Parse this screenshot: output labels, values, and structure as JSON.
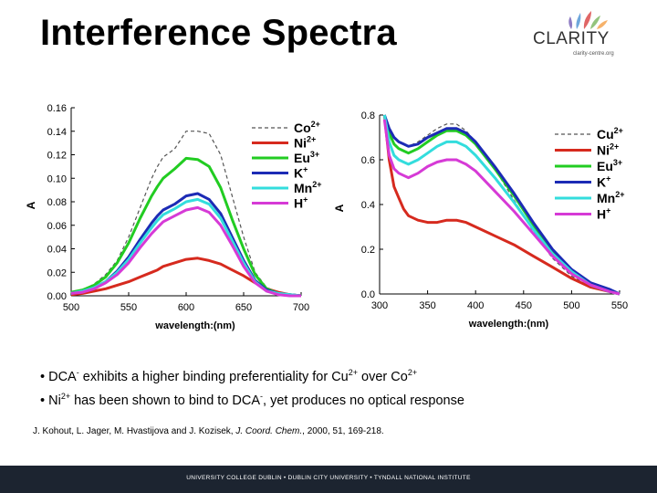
{
  "slide": {
    "title": "Interference Spectra",
    "logo": {
      "word": "CLARITY",
      "subtitle": "clarity-centre.org"
    },
    "bullets": [
      {
        "parts": [
          "• DCA",
          "-",
          " exhibits a higher binding preferentiality for Cu",
          "2+",
          " over Co",
          "2+"
        ]
      },
      {
        "parts": [
          "• Ni",
          "2+",
          " has been shown to bind to DCA",
          "-",
          ", yet produces no optical response"
        ]
      }
    ],
    "reference": {
      "authors": "J. Kohout, L. Jager, M. Hvastijova and J. Kozisek, ",
      "journal": "J. Coord. Chem.",
      "rest": ", 2000, 51, 169-218."
    },
    "footer": "UNIVERSITY COLLEGE DUBLIN  •  DUBLIN CITY UNIVERSITY  •  TYNDALL NATIONAL INSTITUTE"
  },
  "chart_data": [
    {
      "type": "line",
      "xlabel": "wavelength:(nm)",
      "ylabel": "A",
      "xlim": [
        500,
        700
      ],
      "ylim": [
        0,
        0.16
      ],
      "xticks": [
        500,
        550,
        600,
        650,
        700
      ],
      "yticks": [
        0.0,
        0.02,
        0.04,
        0.06,
        0.08,
        0.1,
        0.12,
        0.14,
        0.16
      ],
      "ytick_labels": [
        "0.00",
        "0.02",
        "0.04",
        "0.06",
        "0.08",
        "0.10",
        "0.12",
        "0.14",
        "0.16"
      ],
      "legend": "top-right",
      "x": [
        500,
        510,
        520,
        530,
        540,
        550,
        560,
        570,
        575,
        580,
        590,
        600,
        610,
        620,
        630,
        640,
        650,
        660,
        670,
        680,
        690,
        700
      ],
      "series": [
        {
          "name": "Co",
          "sup": "2+",
          "color": "#555555",
          "dashed": true,
          "values": [
            0.003,
            0.005,
            0.01,
            0.018,
            0.03,
            0.05,
            0.075,
            0.1,
            0.11,
            0.118,
            0.125,
            0.14,
            0.14,
            0.138,
            0.12,
            0.085,
            0.05,
            0.02,
            0.007,
            0.003,
            0.001,
            0.0
          ]
        },
        {
          "name": "Ni",
          "sup": "2+",
          "color": "#d62a1e",
          "dashed": false,
          "values": [
            0.001,
            0.002,
            0.004,
            0.006,
            0.009,
            0.012,
            0.016,
            0.02,
            0.022,
            0.025,
            0.028,
            0.031,
            0.032,
            0.03,
            0.027,
            0.022,
            0.017,
            0.011,
            0.006,
            0.003,
            0.001,
            0.0
          ]
        },
        {
          "name": "Eu",
          "sup": "3+",
          "color": "#22cc22",
          "dashed": false,
          "values": [
            0.003,
            0.005,
            0.009,
            0.016,
            0.028,
            0.045,
            0.066,
            0.085,
            0.093,
            0.1,
            0.108,
            0.117,
            0.116,
            0.11,
            0.092,
            0.065,
            0.04,
            0.018,
            0.006,
            0.002,
            0.001,
            0.0
          ]
        },
        {
          "name": "K",
          "sup": "+",
          "color": "#1c2bb5",
          "dashed": false,
          "values": [
            0.002,
            0.004,
            0.007,
            0.012,
            0.021,
            0.033,
            0.048,
            0.062,
            0.068,
            0.073,
            0.078,
            0.085,
            0.087,
            0.082,
            0.07,
            0.05,
            0.03,
            0.013,
            0.005,
            0.002,
            0.001,
            0.0
          ]
        },
        {
          "name": "Mn",
          "sup": "2+",
          "color": "#33dddd",
          "dashed": false,
          "values": [
            0.002,
            0.004,
            0.007,
            0.012,
            0.02,
            0.031,
            0.045,
            0.058,
            0.064,
            0.069,
            0.074,
            0.08,
            0.082,
            0.078,
            0.066,
            0.047,
            0.028,
            0.012,
            0.004,
            0.002,
            0.001,
            0.0
          ]
        },
        {
          "name": "H",
          "sup": "+",
          "color": "#d63ad6",
          "dashed": false,
          "values": [
            0.002,
            0.003,
            0.006,
            0.011,
            0.018,
            0.028,
            0.041,
            0.053,
            0.058,
            0.063,
            0.068,
            0.073,
            0.075,
            0.071,
            0.06,
            0.043,
            0.025,
            0.011,
            0.004,
            0.001,
            0.0,
            0.0
          ]
        }
      ]
    },
    {
      "type": "line",
      "xlabel": "wavelength:(nm)",
      "ylabel": "A",
      "xlim": [
        300,
        550
      ],
      "ylim": [
        0,
        0.8
      ],
      "xticks": [
        300,
        350,
        400,
        450,
        500,
        550
      ],
      "yticks": [
        0.0,
        0.2,
        0.4,
        0.6,
        0.8
      ],
      "ytick_labels": [
        "0.0",
        "0.2",
        "0.4",
        "0.6",
        "0.8"
      ],
      "legend": "right",
      "x": [
        305,
        310,
        315,
        320,
        325,
        330,
        340,
        350,
        360,
        370,
        380,
        390,
        400,
        420,
        440,
        460,
        480,
        500,
        520,
        540,
        550
      ],
      "series": [
        {
          "name": "Cu",
          "sup": "2+",
          "color": "#555555",
          "dashed": true,
          "values": [
            0.8,
            0.74,
            0.7,
            0.68,
            0.67,
            0.66,
            0.68,
            0.71,
            0.74,
            0.76,
            0.76,
            0.73,
            0.68,
            0.56,
            0.42,
            0.28,
            0.16,
            0.08,
            0.03,
            0.01,
            0.0
          ]
        },
        {
          "name": "Ni",
          "sup": "2+",
          "color": "#d62a1e",
          "dashed": false,
          "values": [
            0.8,
            0.6,
            0.48,
            0.43,
            0.38,
            0.35,
            0.33,
            0.32,
            0.32,
            0.33,
            0.33,
            0.32,
            0.3,
            0.26,
            0.22,
            0.17,
            0.12,
            0.07,
            0.03,
            0.01,
            0.0
          ]
        },
        {
          "name": "Eu",
          "sup": "3+",
          "color": "#22cc22",
          "dashed": false,
          "values": [
            0.8,
            0.72,
            0.67,
            0.65,
            0.64,
            0.63,
            0.65,
            0.68,
            0.71,
            0.73,
            0.73,
            0.71,
            0.67,
            0.56,
            0.44,
            0.31,
            0.19,
            0.1,
            0.04,
            0.01,
            0.0
          ]
        },
        {
          "name": "K",
          "sup": "+",
          "color": "#1c2bb5",
          "dashed": false,
          "values": [
            0.8,
            0.74,
            0.7,
            0.68,
            0.67,
            0.66,
            0.67,
            0.7,
            0.72,
            0.74,
            0.74,
            0.72,
            0.68,
            0.57,
            0.45,
            0.32,
            0.2,
            0.11,
            0.05,
            0.02,
            0.0
          ]
        },
        {
          "name": "Mn",
          "sup": "2+",
          "color": "#33dddd",
          "dashed": false,
          "values": [
            0.8,
            0.68,
            0.62,
            0.6,
            0.59,
            0.58,
            0.6,
            0.63,
            0.66,
            0.68,
            0.68,
            0.66,
            0.62,
            0.52,
            0.41,
            0.29,
            0.18,
            0.1,
            0.04,
            0.01,
            0.0
          ]
        },
        {
          "name": "H",
          "sup": "+",
          "color": "#d63ad6",
          "dashed": false,
          "values": [
            0.78,
            0.62,
            0.56,
            0.54,
            0.53,
            0.52,
            0.54,
            0.57,
            0.59,
            0.6,
            0.6,
            0.58,
            0.55,
            0.46,
            0.37,
            0.27,
            0.17,
            0.09,
            0.04,
            0.01,
            0.0
          ]
        }
      ]
    }
  ]
}
